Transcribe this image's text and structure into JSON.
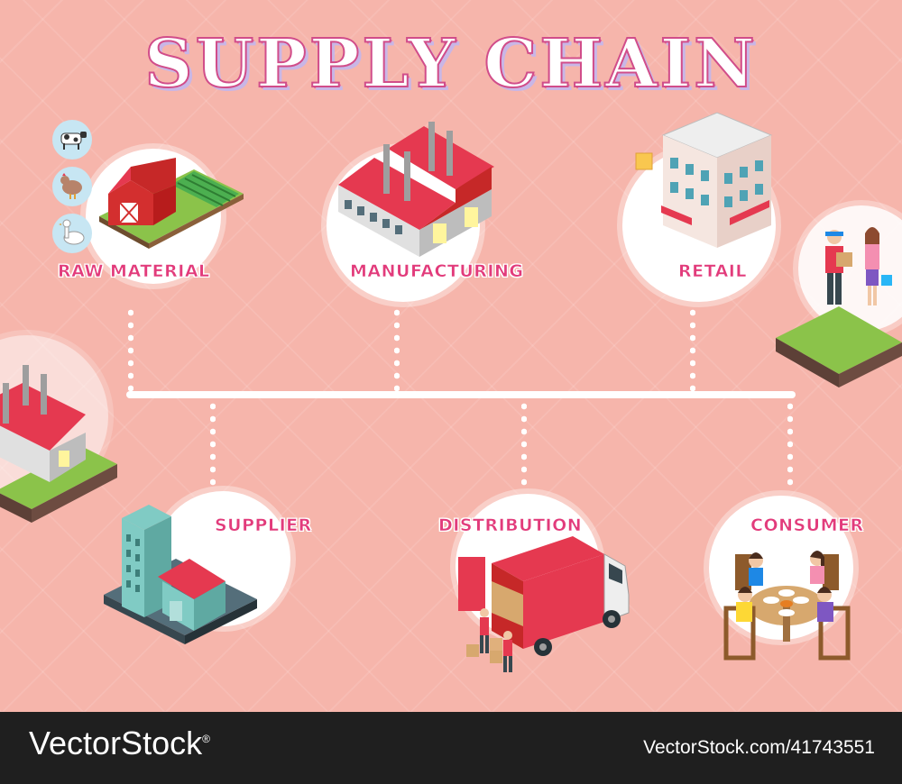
{
  "title": "SUPPLY CHAIN",
  "stages": {
    "raw_material": "RAW MATERIAL",
    "manufacturing": "MANUFACTURING",
    "retail": "RETAIL",
    "supplier": "SUPPLIER",
    "distribution": "DISTRIBUTION",
    "consumer": "CONSUMER"
  },
  "footer": {
    "brand": "VectorStock",
    "brand_mark": "®",
    "stock_id": "VectorStock.com/41743551"
  },
  "colors": {
    "background": "#f6b5ab",
    "label": "#e23b7b",
    "roof_red": "#e53950",
    "footer": "#1f1f1f"
  }
}
